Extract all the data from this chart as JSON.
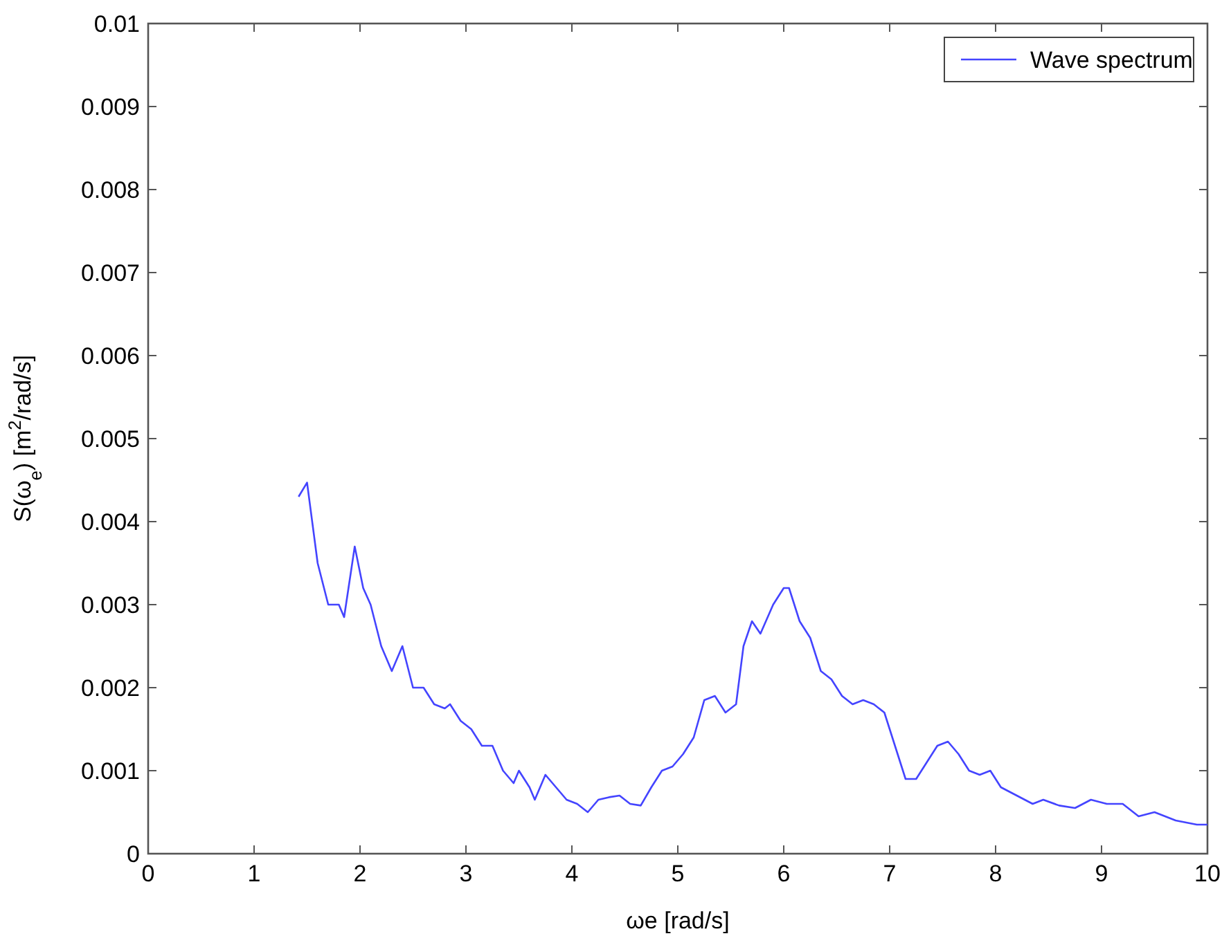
{
  "chart_data": {
    "type": "line",
    "xlabel": "ωe [rad/s]",
    "ylabel": "S(ω$_{e}$) [m$^{2}$/rad/s]",
    "xlim": [
      0,
      10
    ],
    "xticks": [
      0,
      1,
      2,
      3,
      4,
      5,
      6,
      7,
      8,
      9,
      10
    ],
    "ylim": [
      0,
      0.01
    ],
    "yticks": [
      0,
      0.001,
      0.002,
      0.003,
      0.004,
      0.005,
      0.006,
      0.007,
      0.008,
      0.009,
      0.01
    ],
    "grid": false,
    "legend": "top right",
    "marker": "none",
    "line_style": "solid",
    "series": [
      {
        "name": "Wave spectrum",
        "color": "#4444ff",
        "x": [
          1.42,
          1.5,
          1.6,
          1.7,
          1.8,
          1.85,
          1.95,
          2.03,
          2.1,
          2.2,
          2.3,
          2.4,
          2.5,
          2.6,
          2.7,
          2.8,
          2.85,
          2.95,
          3.05,
          3.15,
          3.25,
          3.35,
          3.45,
          3.5,
          3.6,
          3.65,
          3.75,
          3.85,
          3.95,
          4.05,
          4.15,
          4.25,
          4.35,
          4.45,
          4.55,
          4.65,
          4.75,
          4.85,
          4.95,
          5.05,
          5.15,
          5.25,
          5.35,
          5.45,
          5.55,
          5.62,
          5.7,
          5.78,
          5.9,
          6.0,
          6.05,
          6.15,
          6.25,
          6.35,
          6.45,
          6.55,
          6.65,
          6.75,
          6.85,
          6.95,
          7.05,
          7.15,
          7.25,
          7.35,
          7.45,
          7.55,
          7.65,
          7.75,
          7.85,
          7.95,
          8.05,
          8.2,
          8.35,
          8.45,
          8.6,
          8.75,
          8.9,
          9.05,
          9.2,
          9.35,
          9.5,
          9.7,
          9.9,
          10
        ],
        "values": [
          0.0043,
          0.00447,
          0.0035,
          0.003,
          0.003,
          0.00285,
          0.0037,
          0.0032,
          0.003,
          0.0025,
          0.0022,
          0.0025,
          0.002,
          0.002,
          0.0018,
          0.00175,
          0.0018,
          0.0016,
          0.0015,
          0.0013,
          0.0013,
          0.001,
          0.00085,
          0.001,
          0.0008,
          0.00065,
          0.00095,
          0.0008,
          0.00065,
          0.0006,
          0.0005,
          0.00065,
          0.00068,
          0.0007,
          0.0006,
          0.00058,
          0.0008,
          0.001,
          0.00105,
          0.0012,
          0.0014,
          0.00185,
          0.0019,
          0.0017,
          0.0018,
          0.0025,
          0.0028,
          0.00265,
          0.003,
          0.0032,
          0.0032,
          0.0028,
          0.0026,
          0.0022,
          0.0021,
          0.0019,
          0.0018,
          0.00185,
          0.0018,
          0.0017,
          0.0013,
          0.0009,
          0.0009,
          0.0011,
          0.0013,
          0.00135,
          0.0012,
          0.001,
          0.00095,
          0.001,
          0.0008,
          0.0007,
          0.0006,
          0.00065,
          0.00058,
          0.00055,
          0.00065,
          0.0006,
          0.0006,
          0.00045,
          0.0005,
          0.0004,
          0.00035,
          0.00035
        ]
      }
    ]
  }
}
